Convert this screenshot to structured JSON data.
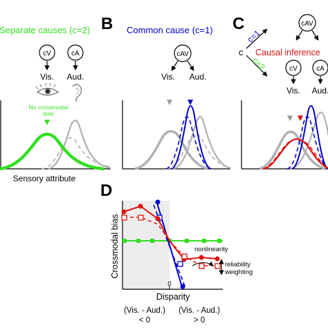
{
  "colors": {
    "green": "#33dd22",
    "blue": "#0000cc",
    "red": "#dd1111",
    "gray": "#b0b0b0",
    "shade": "#ececec"
  },
  "panel_a": {
    "title": "Separate causes (c=2)",
    "node_v": "cV",
    "node_a": "cA",
    "label_v": "Vis.",
    "label_a": "Aud.",
    "note_line1": "No crossmodal",
    "note_line2": "bias",
    "xlabel": "Sensory attribute",
    "icons": [
      "eye-icon",
      "ear-icon"
    ]
  },
  "panel_b": {
    "letter": "B",
    "title": "Common cause (c=1)",
    "node": "cAV",
    "label_v": "Vis.",
    "label_a": "Aud."
  },
  "panel_c": {
    "letter": "C",
    "node_top": "cAV",
    "c_label": "c",
    "c1_label": "c=1",
    "c2_label": "c=2",
    "inference_label": "Causal inference",
    "node_v": "cV",
    "node_a": "cA",
    "label_v": "Vis.",
    "label_a": "Aud."
  },
  "panel_d": {
    "letter": "D",
    "ylabel": "Crossmodal bias",
    "xlabel": "Disparity",
    "zero_label": "0",
    "left_label_1": "(Vis. - Aud.)",
    "left_label_2": "< 0",
    "right_label_1": "(Vis. - Aud.)",
    "right_label_2": "> 0",
    "nonlinearity_label": "nonlinearity",
    "reliability_label_1": "reliability",
    "reliability_label_2": "weighting"
  }
}
